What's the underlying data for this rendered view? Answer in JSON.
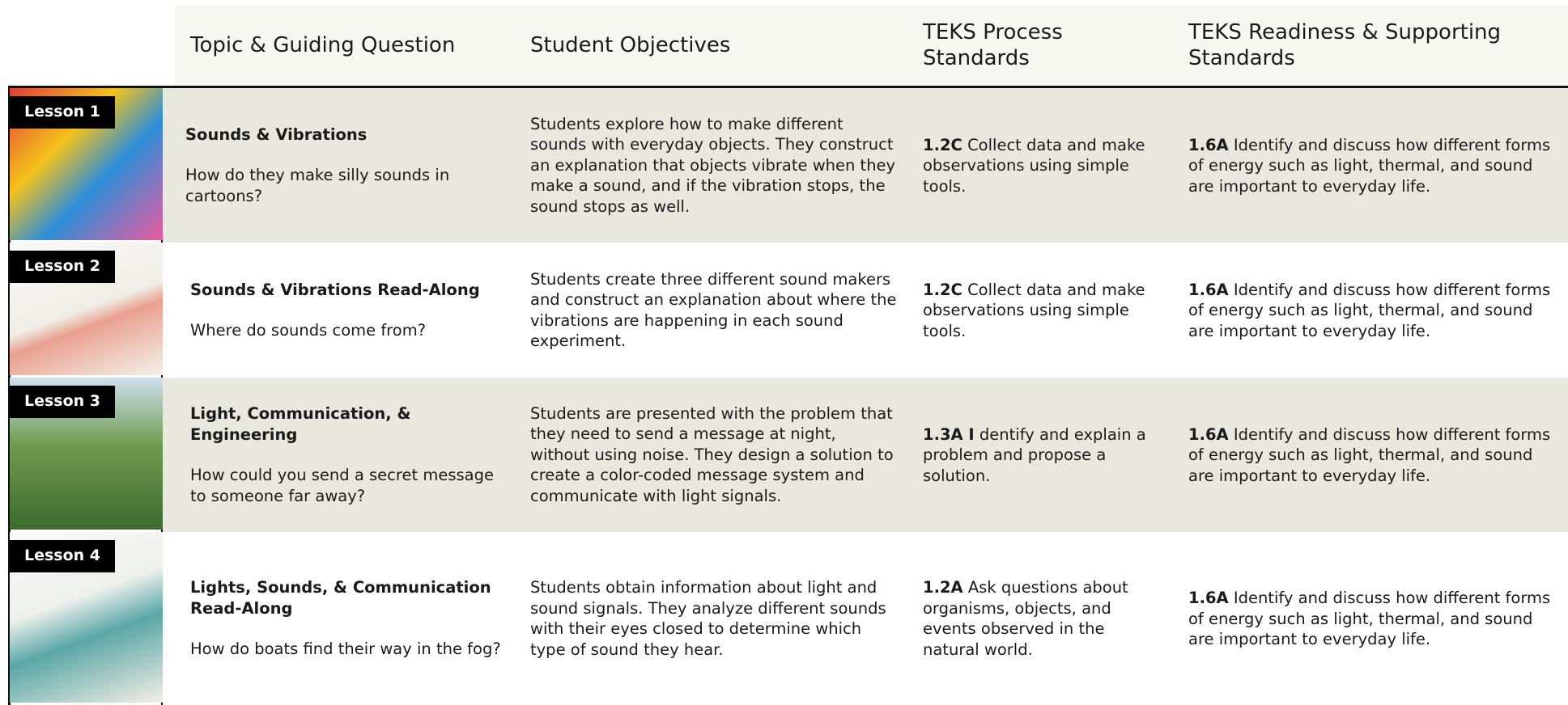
{
  "header": {
    "columns": [
      "Topic & Guiding Question",
      "Student Objectives",
      "TEKS Process Standards",
      "TEKS Readiness & Supporting Standards"
    ]
  },
  "rows": [
    {
      "lesson": "Lesson 1",
      "title": "Sounds & Vibrations",
      "question": "How do they make silly sounds in cartoons?",
      "objectives": "Students explore how to make different sounds with everyday objects. They construct an explanation that objects vibrate when they make a sound, and if the vibration stops, the sound stops as well.",
      "process_code": "1.2C",
      "process_text": "Collect data and make observations using simple tools.",
      "readiness_code": "1.6A",
      "readiness_text": "Identify and discuss how different forms of energy such as light, thermal, and sound are important to everyday life."
    },
    {
      "lesson": "Lesson 2",
      "title": "Sounds & Vibrations Read-Along",
      "question": "Where do sounds come from?",
      "objectives": "Students create three different sound makers and construct an explanation about where the vibrations are happening in each sound experiment.",
      "process_code": "1.2C",
      "process_text": "Collect data and make observations using simple tools.",
      "readiness_code": "1.6A",
      "readiness_text": "Identify and discuss how different forms of energy such as light, thermal, and sound are important to everyday life."
    },
    {
      "lesson": "Lesson 3",
      "title": "Light, Communication, & Engineering",
      "question": "How could you send a secret message to someone far away?",
      "objectives": "Students are presented with the problem that they need to send a message at night, without using noise. They design a solution to create a color-coded message system and communicate with light signals.",
      "process_code": "1.3A I",
      "process_text": "dentify and explain a problem and propose a solution.",
      "readiness_code": "1.6A",
      "readiness_text": "Identify and discuss how different forms of energy such as light, thermal, and sound are important to everyday life."
    },
    {
      "lesson": "Lesson 4",
      "title": "Lights, Sounds, & Communication Read-Along",
      "question": "How do boats find their way in the fog?",
      "objectives": "Students obtain information about light and sound signals. They analyze different sounds with their eyes closed to determine which type of sound they hear.",
      "process_code": "1.2A",
      "process_text": "Ask questions about organisms, objects, and events observed in the natural world.",
      "readiness_code": "1.6A",
      "readiness_text": "Identify and discuss how different forms of energy such as light, thermal, and sound are important to everyday life."
    }
  ]
}
